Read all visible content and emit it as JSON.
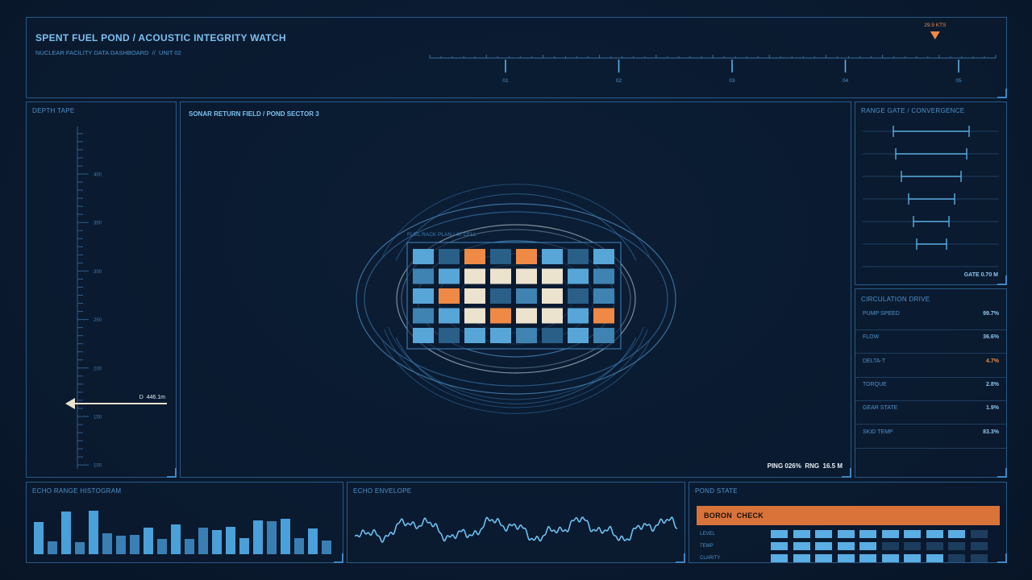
{
  "header": {
    "title": "SPENT FUEL POND / ACOUSTIC INTEGRITY WATCH",
    "subtitle": "NUCLEAR FACILITY DATA DASHBOARD  //  UNIT 02",
    "timeline_marker": "29.9 KTS",
    "timeline_ticks": [
      "01",
      "02",
      "03",
      "04",
      "05"
    ],
    "timeline_marker_value": 0.9
  },
  "depth_tape": {
    "title": "DEPTH TAPE",
    "scale": [
      "400",
      "350",
      "300",
      "250",
      "200",
      "150",
      "100"
    ],
    "readout": "D  446.1m"
  },
  "sonar": {
    "title": "SONAR RETURN FIELD / POND SECTOR 3",
    "rack_label": "FUEL RACK PLAN / 40 CELL",
    "footer": "PING 026%  RNG  16.5 M",
    "grid": [
      [
        "b",
        "d",
        "o",
        "d",
        "o",
        "b",
        "d",
        "b"
      ],
      [
        "m",
        "b",
        "c",
        "c",
        "c",
        "c",
        "b",
        "m"
      ],
      [
        "b",
        "o",
        "c",
        "d",
        "m",
        "c",
        "d",
        "m"
      ],
      [
        "m",
        "b",
        "c",
        "o",
        "c",
        "c",
        "b",
        "o"
      ],
      [
        "b",
        "d",
        "b",
        "b",
        "m",
        "d",
        "b",
        "m"
      ]
    ],
    "colors": {
      "b": "#58a6d8",
      "m": "#3f83b2",
      "d": "#2a5f88",
      "o": "#ee8a45",
      "c": "#ece3cf"
    }
  },
  "range_gate": {
    "title": "RANGE GATE / CONVERGENCE",
    "footer": "GATE 0.70 M"
  },
  "circulation": {
    "title": "CIRCULATION DRIVE",
    "rows": [
      {
        "label": "PUMP SPEED",
        "value": "99.7%",
        "warn": false
      },
      {
        "label": "FLOW",
        "value": "36.6%",
        "warn": false
      },
      {
        "label": "DELTA-T",
        "value": "4.7%",
        "warn": true
      },
      {
        "label": "TORQUE",
        "value": "2.8%",
        "warn": false
      },
      {
        "label": "GEAR STATE",
        "value": "1.9%",
        "warn": false
      },
      {
        "label": "SKID TEMP",
        "value": "83.3%",
        "warn": false
      }
    ]
  },
  "histogram": {
    "title": "ECHO RANGE HISTOGRAM"
  },
  "envelope": {
    "title": "ECHO ENVELOPE"
  },
  "pond_state": {
    "title": "POND STATE",
    "alert": "BORON  CHECK",
    "rows": [
      {
        "label": "LEVEL",
        "filled": 9,
        "total": 10
      },
      {
        "label": "TEMP",
        "filled": 5,
        "total": 10
      },
      {
        "label": "CLARITY",
        "filled": 8,
        "total": 10
      }
    ],
    "colors": {
      "on": "#5aaee3",
      "off": "#1d3d5f",
      "alert_bg": "#d9733a"
    }
  }
}
